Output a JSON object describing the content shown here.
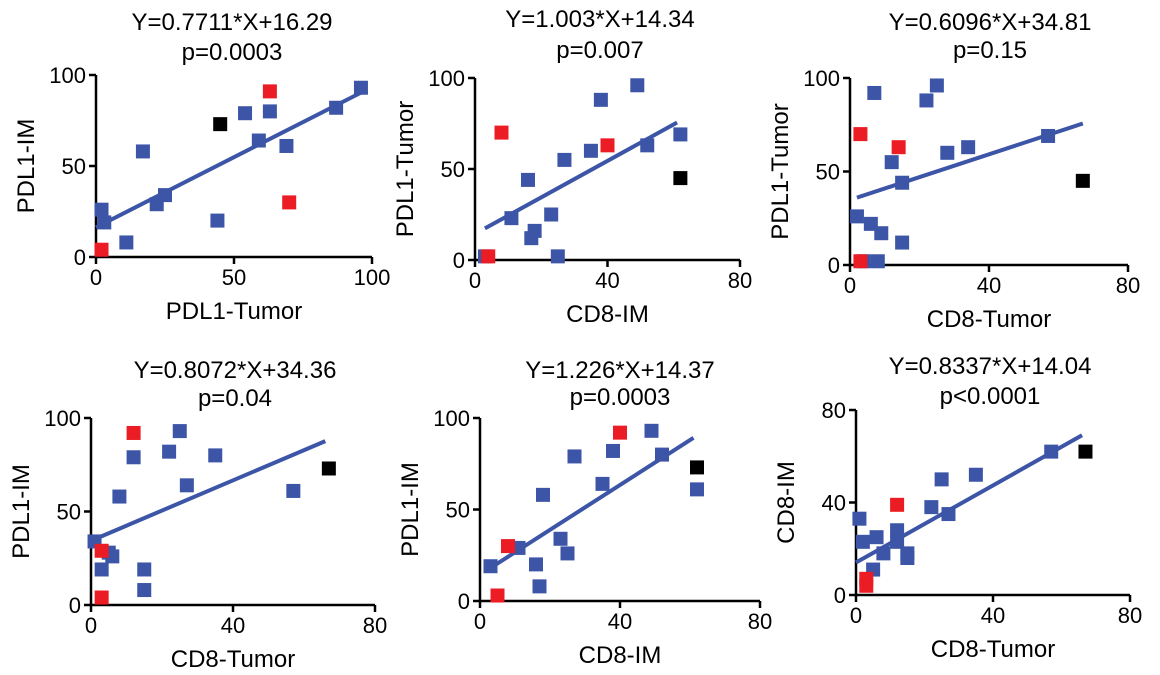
{
  "colors": {
    "series_blue": "#3c55a7",
    "series_red": "#ec1c24",
    "series_black": "#000000",
    "fit_line": "#3c55a7",
    "axis": "#000000"
  },
  "chart_data": [
    {
      "type": "scatter",
      "title": "Y=0.7711*X+16.29",
      "subtitle": "p=0.0003",
      "xlabel": "PDL1-Tumor",
      "ylabel": "PDL1-IM",
      "xlim": [
        0,
        100
      ],
      "ylim": [
        0,
        100
      ],
      "xticks": [
        "0",
        "50",
        "100"
      ],
      "yticks": [
        "0",
        "50",
        "100"
      ],
      "fit": {
        "slope": 0.7711,
        "intercept": 16.29,
        "x_range": [
          0,
          97
        ]
      },
      "series": [
        {
          "color": "blue",
          "points": [
            [
              2,
              26
            ],
            [
              3,
              19
            ],
            [
              11,
              8
            ],
            [
              17,
              58
            ],
            [
              22,
              29
            ],
            [
              25,
              34
            ],
            [
              44,
              20
            ],
            [
              54,
              79
            ],
            [
              59,
              64
            ],
            [
              63,
              80
            ],
            [
              69,
              61
            ],
            [
              87,
              82
            ],
            [
              96,
              93
            ]
          ]
        },
        {
          "color": "red",
          "points": [
            [
              2,
              4
            ],
            [
              63,
              91
            ],
            [
              70,
              30
            ]
          ]
        },
        {
          "color": "black",
          "points": [
            [
              45,
              73
            ]
          ]
        }
      ]
    },
    {
      "type": "scatter",
      "title": "Y=1.003*X+14.34",
      "subtitle": "p=0.007",
      "xlabel": "CD8-IM",
      "ylabel": "PDL1-Tumor",
      "xlim": [
        0,
        80
      ],
      "ylim": [
        0,
        100
      ],
      "xticks": [
        "0",
        "40",
        "80"
      ],
      "yticks": [
        "0",
        "50",
        "100"
      ],
      "fit": {
        "slope": 1.003,
        "intercept": 14.34,
        "x_range": [
          3,
          61
        ]
      },
      "series": [
        {
          "color": "blue",
          "points": [
            [
              3,
              2
            ],
            [
              11,
              23
            ],
            [
              16,
              44
            ],
            [
              17,
              12
            ],
            [
              18,
              16
            ],
            [
              23,
              25
            ],
            [
              25,
              2
            ],
            [
              27,
              55
            ],
            [
              35,
              60
            ],
            [
              38,
              88
            ],
            [
              49,
              96
            ],
            [
              52,
              63
            ],
            [
              62,
              69
            ]
          ]
        },
        {
          "color": "red",
          "points": [
            [
              4,
              2
            ],
            [
              8,
              70
            ],
            [
              40,
              63
            ]
          ]
        },
        {
          "color": "black",
          "points": [
            [
              62,
              45
            ]
          ]
        }
      ]
    },
    {
      "type": "scatter",
      "title": "Y=0.6096*X+34.81",
      "subtitle": "p=0.15",
      "xlabel": "CD8-Tumor",
      "ylabel": "PDL1-Tumor",
      "xlim": [
        0,
        80
      ],
      "ylim": [
        0,
        100
      ],
      "xticks": [
        "0",
        "40",
        "80"
      ],
      "yticks": [
        "0",
        "50",
        "100"
      ],
      "fit": {
        "slope": 0.6096,
        "intercept": 34.81,
        "x_range": [
          2,
          67
        ]
      },
      "series": [
        {
          "color": "blue",
          "points": [
            [
              2,
              26
            ],
            [
              4,
              2
            ],
            [
              6,
              22
            ],
            [
              7,
              92
            ],
            [
              8,
              2
            ],
            [
              9,
              17
            ],
            [
              15,
              12
            ],
            [
              15,
              44
            ],
            [
              22,
              88
            ],
            [
              25,
              96
            ],
            [
              28,
              60
            ],
            [
              34,
              63
            ],
            [
              57,
              69
            ],
            [
              12,
              55
            ]
          ]
        },
        {
          "color": "red",
          "points": [
            [
              3,
              70
            ],
            [
              3,
              2
            ],
            [
              14,
              63
            ]
          ]
        },
        {
          "color": "black",
          "points": [
            [
              67,
              45
            ]
          ]
        }
      ]
    },
    {
      "type": "scatter",
      "title": "Y=0.8072*X+34.36",
      "subtitle": "p=0.04",
      "xlabel": "CD8-Tumor",
      "ylabel": "PDL1-IM",
      "xlim": [
        0,
        80
      ],
      "ylim": [
        0,
        100
      ],
      "xticks": [
        "0",
        "40",
        "80"
      ],
      "yticks": [
        "0",
        "50",
        "100"
      ],
      "fit": {
        "slope": 0.8072,
        "intercept": 34.36,
        "x_range": [
          0,
          66
        ]
      },
      "series": [
        {
          "color": "blue",
          "points": [
            [
              1,
              34
            ],
            [
              3,
              19
            ],
            [
              5,
              28
            ],
            [
              6,
              26
            ],
            [
              8,
              58
            ],
            [
              12,
              79
            ],
            [
              15,
              19
            ],
            [
              15,
              8
            ],
            [
              22,
              82
            ],
            [
              25,
              93
            ],
            [
              27,
              64
            ],
            [
              35,
              80
            ],
            [
              57,
              61
            ]
          ]
        },
        {
          "color": "red",
          "points": [
            [
              3,
              29
            ],
            [
              3,
              4
            ],
            [
              12,
              92
            ]
          ]
        },
        {
          "color": "black",
          "points": [
            [
              67,
              73
            ]
          ]
        }
      ]
    },
    {
      "type": "scatter",
      "title": "Y=1.226*X+14.37",
      "subtitle": "p=0.0003",
      "xlabel": "CD8-IM",
      "ylabel": "PDL1-IM",
      "xlim": [
        0,
        80
      ],
      "ylim": [
        0,
        100
      ],
      "xticks": [
        "0",
        "40",
        "80"
      ],
      "yticks": [
        "0",
        "50",
        "100"
      ],
      "fit": {
        "slope": 1.226,
        "intercept": 14.37,
        "x_range": [
          3,
          61
        ]
      },
      "series": [
        {
          "color": "blue",
          "points": [
            [
              3,
              19
            ],
            [
              11,
              29
            ],
            [
              16,
              20
            ],
            [
              17,
              8
            ],
            [
              18,
              58
            ],
            [
              23,
              34
            ],
            [
              25,
              26
            ],
            [
              27,
              79
            ],
            [
              35,
              64
            ],
            [
              38,
              82
            ],
            [
              49,
              93
            ],
            [
              52,
              80
            ],
            [
              62,
              61
            ]
          ]
        },
        {
          "color": "red",
          "points": [
            [
              5,
              3
            ],
            [
              8,
              30
            ],
            [
              40,
              92
            ]
          ]
        },
        {
          "color": "black",
          "points": [
            [
              62,
              73
            ]
          ]
        }
      ]
    },
    {
      "type": "scatter",
      "title": "Y=0.8337*X+14.04",
      "subtitle": "p<0.0001",
      "xlabel": "CD8-Tumor",
      "ylabel": "CD8-IM",
      "xlim": [
        0,
        80
      ],
      "ylim": [
        0,
        80
      ],
      "xticks": [
        "0",
        "40",
        "80"
      ],
      "yticks": [
        "0",
        "40",
        "80"
      ],
      "fit": {
        "slope": 0.8337,
        "intercept": 14.04,
        "x_range": [
          0,
          66
        ]
      },
      "series": [
        {
          "color": "blue",
          "points": [
            [
              1,
              33
            ],
            [
              2,
              23
            ],
            [
              5,
              11
            ],
            [
              6,
              25
            ],
            [
              8,
              18
            ],
            [
              12,
              23
            ],
            [
              15,
              16
            ],
            [
              15,
              18
            ],
            [
              22,
              38
            ],
            [
              25,
              50
            ],
            [
              27,
              35
            ],
            [
              35,
              52
            ],
            [
              57,
              62
            ],
            [
              12,
              28
            ]
          ]
        },
        {
          "color": "red",
          "points": [
            [
              3,
              4
            ],
            [
              3,
              7
            ],
            [
              12,
              39
            ]
          ]
        },
        {
          "color": "black",
          "points": [
            [
              67,
              62
            ]
          ]
        }
      ]
    }
  ]
}
